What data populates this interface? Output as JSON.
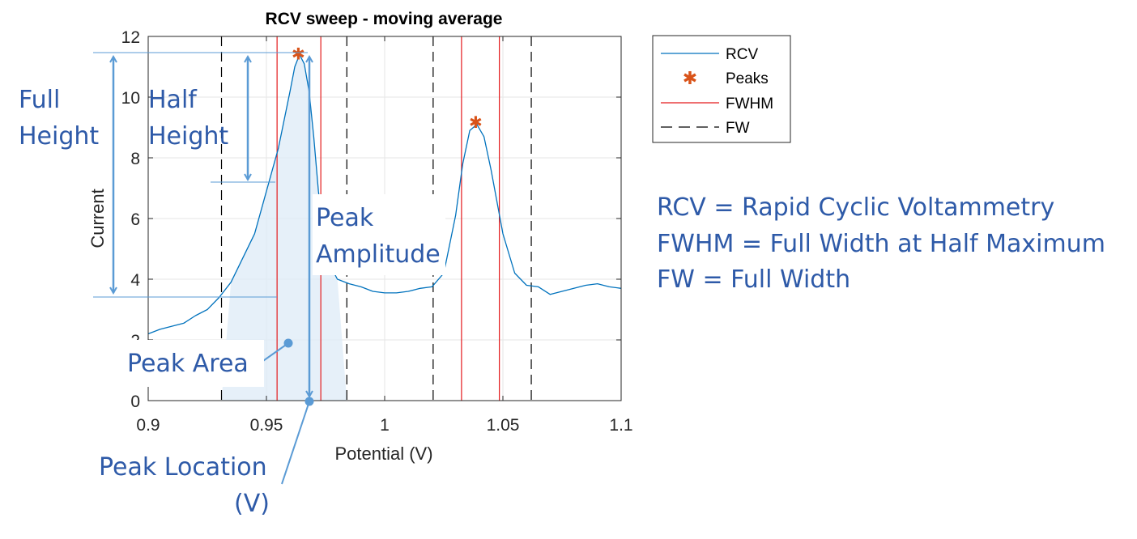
{
  "chart_data": {
    "type": "line",
    "title": "RCV sweep - moving average",
    "xlabel": "Potential (V)",
    "ylabel": "Current",
    "xlim": [
      0.9,
      1.1
    ],
    "ylim": [
      0,
      12
    ],
    "x_ticks": [
      0.9,
      0.95,
      1,
      1.05,
      1.1
    ],
    "x_tick_labels": [
      "0.9",
      "0.95",
      "1",
      "1.05",
      "1.1"
    ],
    "y_ticks": [
      0,
      2,
      4,
      6,
      8,
      10,
      12
    ],
    "y_tick_labels": [
      "0",
      "2",
      "4",
      "6",
      "8",
      "10",
      "12"
    ],
    "grid": true,
    "legend_position": "outside-top-right",
    "legend": [
      "RCV",
      "Peaks",
      "FWHM",
      "FW"
    ],
    "series": [
      {
        "name": "RCV",
        "style": "line",
        "color": "#0072bd",
        "x": [
          0.9,
          0.905,
          0.91,
          0.915,
          0.92,
          0.925,
          0.93,
          0.935,
          0.94,
          0.945,
          0.95,
          0.955,
          0.96,
          0.962,
          0.964,
          0.966,
          0.968,
          0.97,
          0.972,
          0.975,
          0.978,
          0.98,
          0.985,
          0.99,
          0.995,
          1.0,
          1.005,
          1.01,
          1.015,
          1.02,
          1.025,
          1.03,
          1.033,
          1.036,
          1.039,
          1.042,
          1.045,
          1.05,
          1.055,
          1.06,
          1.065,
          1.07,
          1.075,
          1.08,
          1.085,
          1.09,
          1.095,
          1.1
        ],
        "y": [
          2.2,
          2.35,
          2.45,
          2.55,
          2.8,
          3.0,
          3.4,
          3.9,
          4.7,
          5.5,
          6.9,
          8.3,
          10.2,
          11.0,
          11.4,
          11.1,
          10.2,
          8.7,
          6.9,
          5.0,
          4.3,
          4.0,
          3.85,
          3.75,
          3.6,
          3.55,
          3.55,
          3.6,
          3.7,
          3.75,
          4.2,
          6.1,
          7.8,
          8.9,
          9.1,
          8.7,
          7.6,
          5.5,
          4.2,
          3.8,
          3.75,
          3.5,
          3.6,
          3.7,
          3.8,
          3.85,
          3.75,
          3.7
        ]
      },
      {
        "name": "Peaks",
        "style": "marker",
        "color": "#d95319",
        "x": [
          0.9635,
          1.0385
        ],
        "y": [
          11.45,
          9.2
        ]
      },
      {
        "name": "FWHM",
        "style": "vertical-lines",
        "color": "#e41a1c",
        "x": [
          0.9545,
          0.973,
          1.0325,
          1.0485
        ]
      },
      {
        "name": "FW",
        "style": "vertical-dashed-lines",
        "color": "#000000",
        "x": [
          0.931,
          0.984,
          1.0205,
          1.062
        ]
      }
    ]
  },
  "annotations": {
    "full_height": [
      "Full",
      "Height"
    ],
    "half_height": [
      "Half",
      "Height"
    ],
    "peak_amplitude": [
      "Peak",
      "Amplitude"
    ],
    "peak_area": "Peak Area",
    "peak_location": [
      "Peak Location",
      "(V)"
    ],
    "definitions": [
      "RCV = Rapid Cyclic Voltammetry",
      "FWHM = Full Width at Half Maximum",
      "FW = Full Width"
    ],
    "color": "#2e5aa8",
    "arrow_color": "#5b9bd5"
  }
}
